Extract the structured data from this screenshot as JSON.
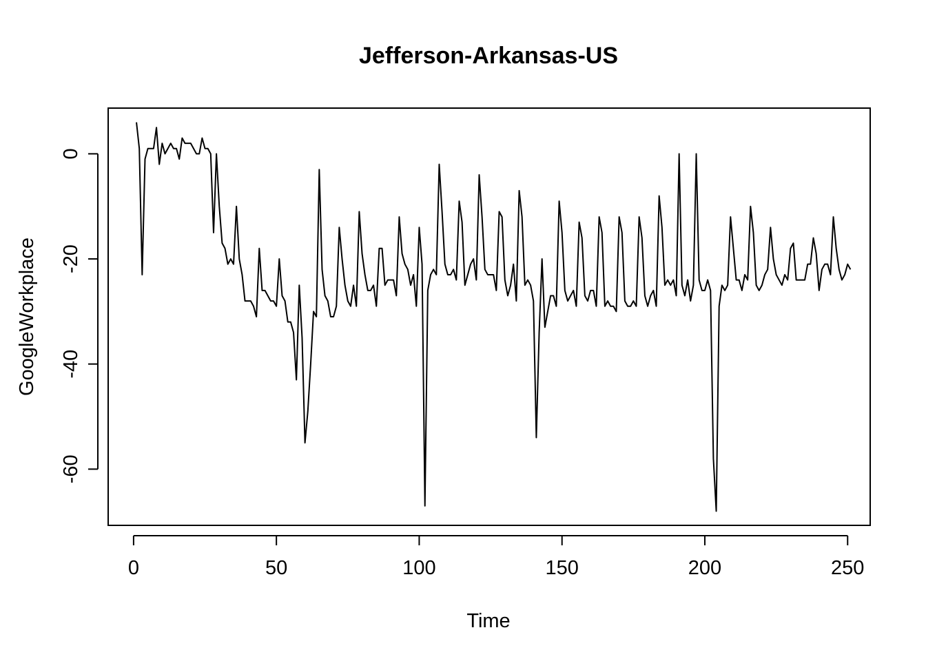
{
  "chart_data": {
    "type": "line",
    "title": "Jefferson-Arkansas-US",
    "xlabel": "Time",
    "ylabel": "GoogleWorkplace",
    "xlim": [
      -8.9,
      257.9
    ],
    "ylim": [
      -70.7,
      8.7
    ],
    "x_ticks": [
      0,
      50,
      100,
      150,
      200,
      250
    ],
    "y_ticks": [
      -60,
      -40,
      -20,
      0
    ],
    "x_tick_labels": [
      "0",
      "50",
      "100",
      "150",
      "200",
      "250"
    ],
    "y_tick_labels": [
      "-60",
      "-40",
      "-20",
      "0"
    ],
    "grid": false,
    "line_color": "#000000",
    "series": [
      {
        "x_start": 1,
        "values": [
          6,
          1,
          -23,
          -1,
          1,
          1,
          1,
          5,
          -2,
          2,
          0,
          1,
          2,
          1,
          1,
          -1,
          3,
          2,
          2,
          2,
          1,
          0,
          0,
          3,
          1,
          1,
          0,
          -15,
          0,
          -10,
          -17,
          -18,
          -21,
          -20,
          -21,
          -10,
          -20,
          -23,
          -28,
          -28,
          -28,
          -29,
          -31,
          -18,
          -26,
          -26,
          -27,
          -28,
          -28,
          -29,
          -20,
          -27,
          -28,
          -32,
          -32,
          -34,
          -43,
          -25,
          -35,
          -55,
          -49,
          -40,
          -30,
          -31,
          -3,
          -22,
          -27,
          -28,
          -31,
          -31,
          -29,
          -14,
          -20,
          -25,
          -28,
          -29,
          -25,
          -29,
          -11,
          -19,
          -23,
          -26,
          -26,
          -25,
          -29,
          -18,
          -18,
          -25,
          -24,
          -24,
          -24,
          -27,
          -12,
          -19,
          -21,
          -22,
          -25,
          -23,
          -29,
          -14,
          -21,
          -67,
          -26,
          -23,
          -22,
          -23,
          -2,
          -11,
          -21,
          -23,
          -23,
          -22,
          -24,
          -9,
          -13,
          -25,
          -23,
          -21,
          -20,
          -24,
          -4,
          -12,
          -22,
          -23,
          -23,
          -23,
          -26,
          -11,
          -12,
          -24,
          -27,
          -25,
          -21,
          -28,
          -7,
          -12,
          -25,
          -24,
          -25,
          -28,
          -54,
          -34,
          -20,
          -33,
          -30,
          -27,
          -27,
          -29,
          -9,
          -15,
          -26,
          -28,
          -27,
          -26,
          -29,
          -13,
          -16,
          -27,
          -28,
          -26,
          -26,
          -29,
          -12,
          -15,
          -29,
          -28,
          -29,
          -29,
          -30,
          -12,
          -15,
          -28,
          -29,
          -29,
          -28,
          -29,
          -12,
          -16,
          -27,
          -29,
          -27,
          -26,
          -29,
          -8,
          -14,
          -25,
          -24,
          -25,
          -24,
          -27,
          0,
          -25,
          -27,
          -24,
          -28,
          -25,
          0,
          -24,
          -26,
          -26,
          -24,
          -26,
          -58,
          -68,
          -29,
          -25,
          -26,
          -25,
          -12,
          -18,
          -24,
          -24,
          -26,
          -23,
          -24,
          -10,
          -15,
          -25,
          -26,
          -25,
          -23,
          -22,
          -14,
          -20,
          -23,
          -24,
          -25,
          -23,
          -24,
          -18,
          -17,
          -24,
          -24,
          -24,
          -24,
          -21,
          -21,
          -16,
          -19,
          -26,
          -22,
          -21,
          -21,
          -23,
          -12,
          -18,
          -22,
          -24,
          -23,
          -21,
          -22
        ]
      }
    ]
  }
}
